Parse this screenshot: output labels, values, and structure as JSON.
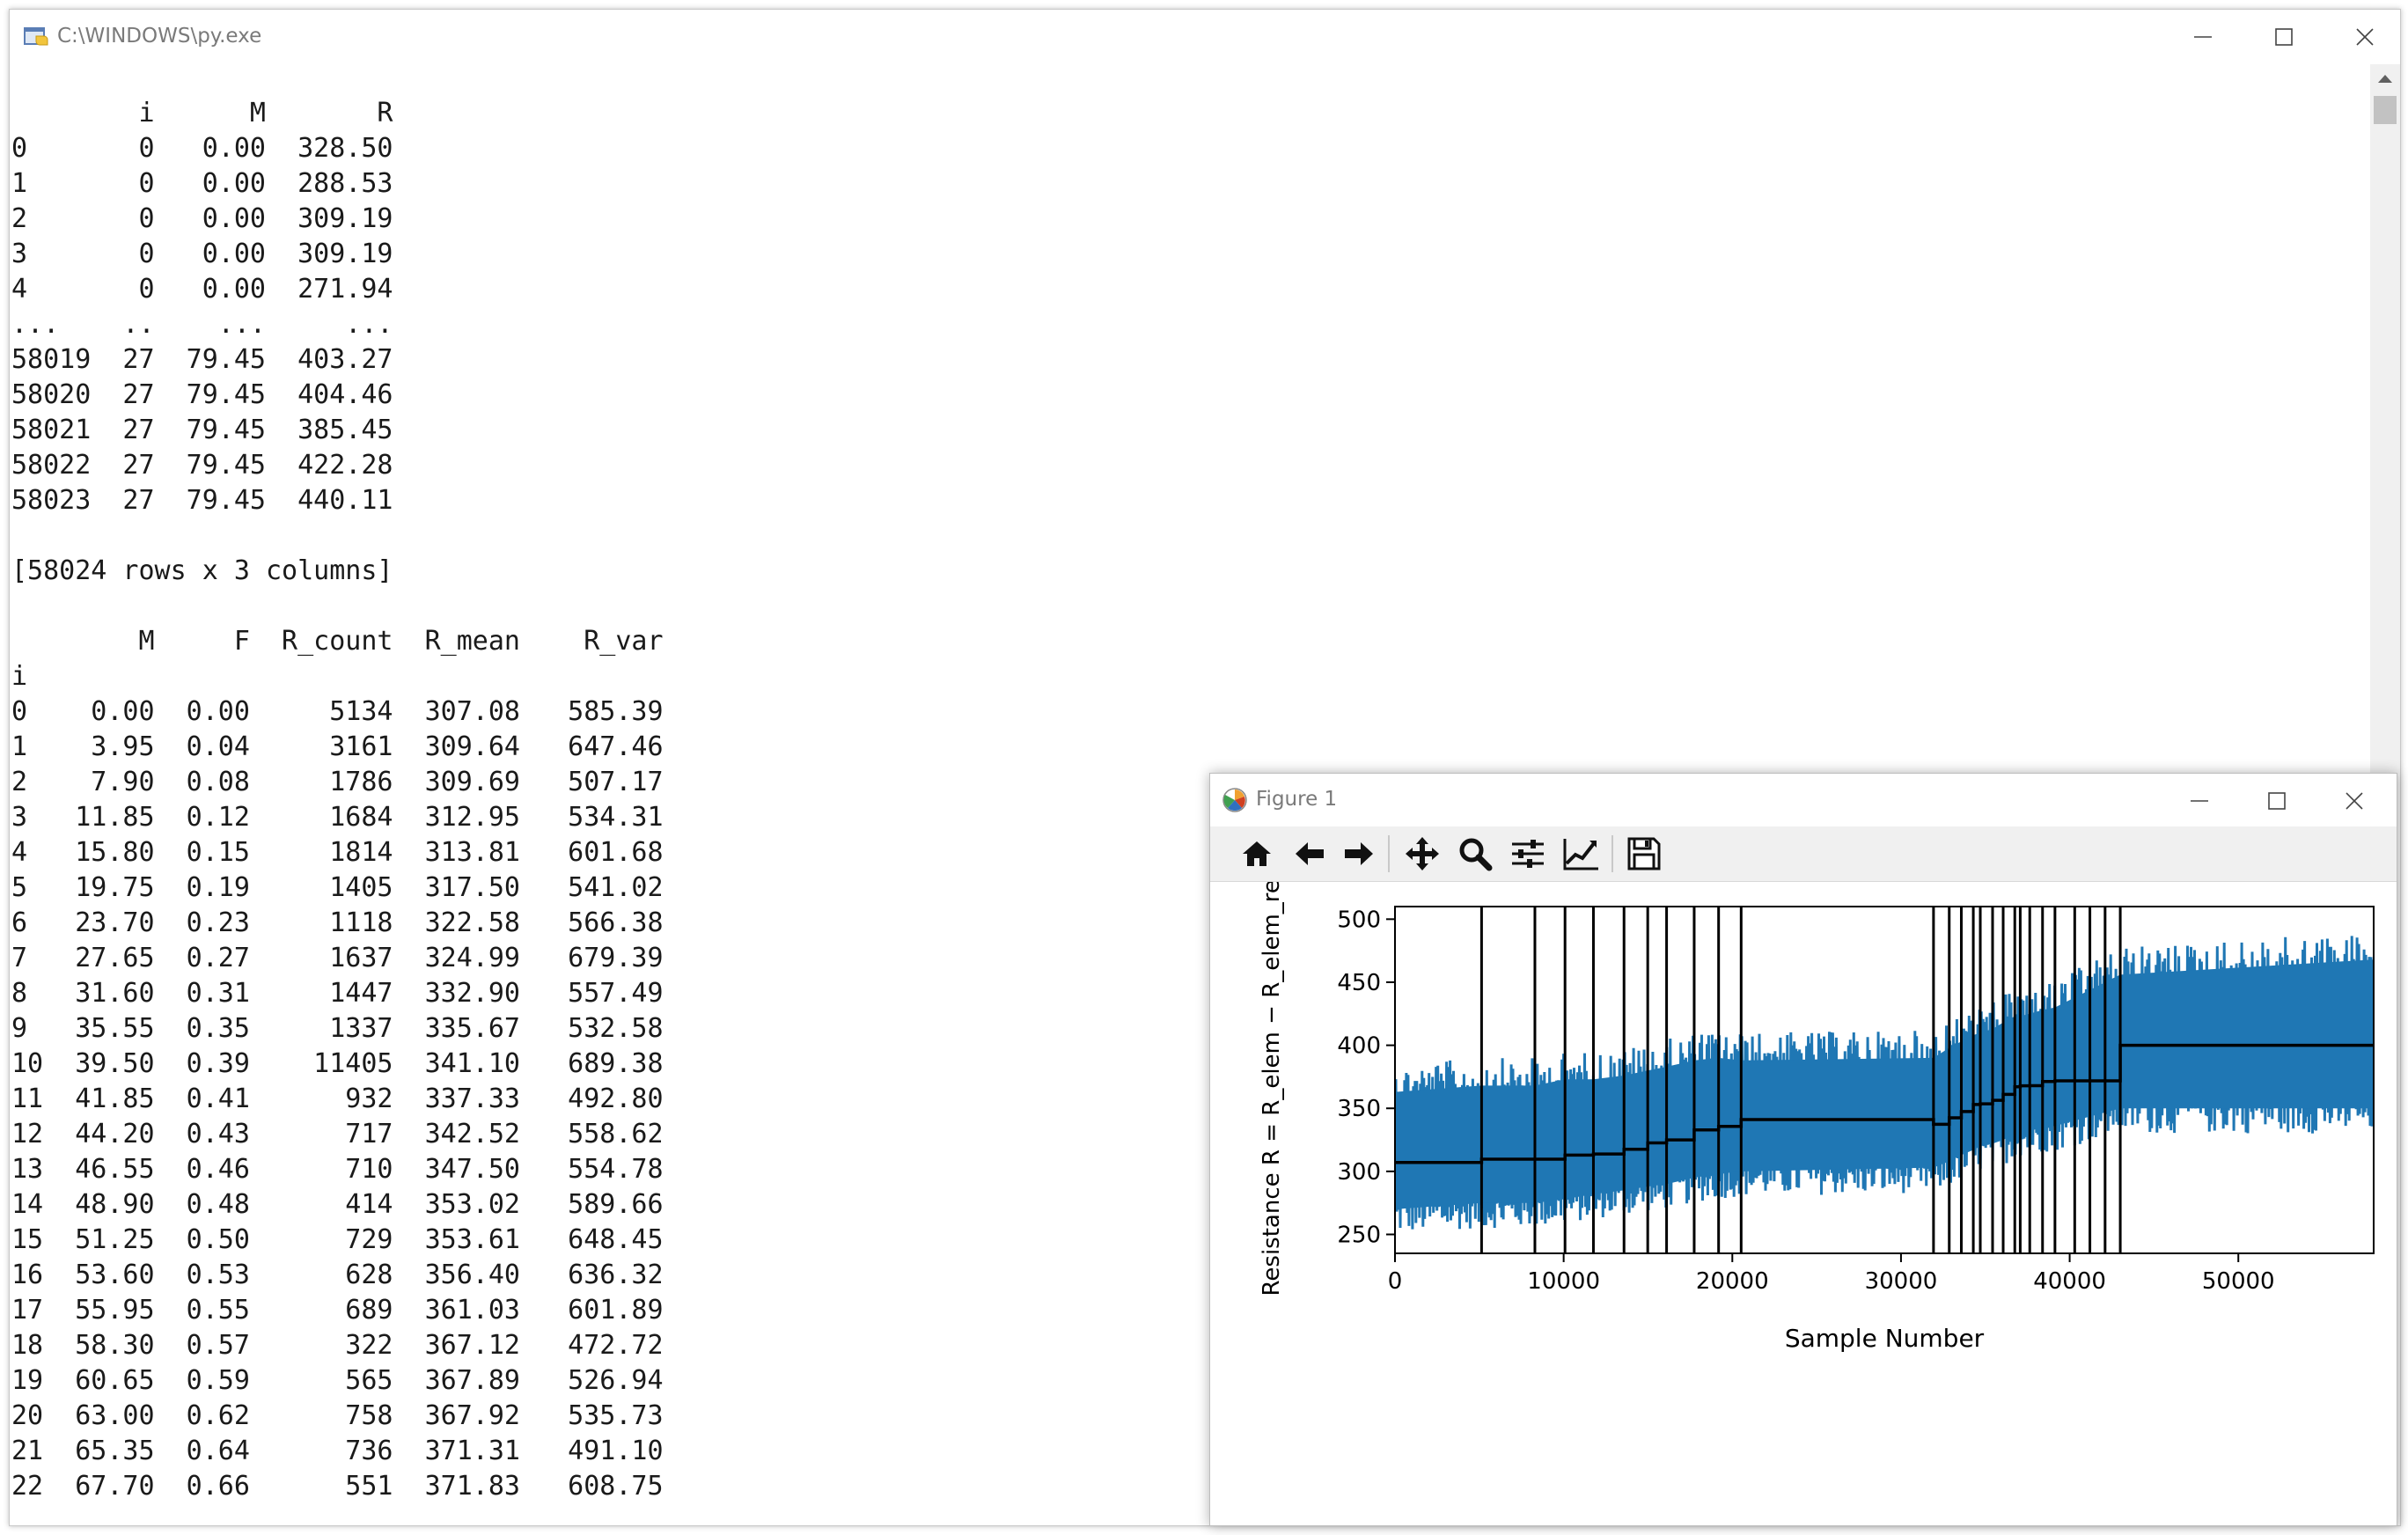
{
  "console": {
    "title": "C:\\WINDOWS\\py.exe",
    "lines": [
      "        i      M       R",
      "0       0   0.00  328.50",
      "1       0   0.00  288.53",
      "2       0   0.00  309.19",
      "3       0   0.00  309.19",
      "4       0   0.00  271.94",
      "...    ..    ...     ...",
      "58019  27  79.45  403.27",
      "58020  27  79.45  404.46",
      "58021  27  79.45  385.45",
      "58022  27  79.45  422.28",
      "58023  27  79.45  440.11",
      "",
      "[58024 rows x 3 columns]",
      "",
      "        M     F  R_count  R_mean    R_var",
      "i",
      "0    0.00  0.00     5134  307.08   585.39",
      "1    3.95  0.04     3161  309.64   647.46",
      "2    7.90  0.08     1786  309.69   507.17",
      "3   11.85  0.12     1684  312.95   534.31",
      "4   15.80  0.15     1814  313.81   601.68",
      "5   19.75  0.19     1405  317.50   541.02",
      "6   23.70  0.23     1118  322.58   566.38",
      "7   27.65  0.27     1637  324.99   679.39",
      "8   31.60  0.31     1447  332.90   557.49",
      "9   35.55  0.35     1337  335.67   532.58",
      "10  39.50  0.39    11405  341.10   689.38",
      "11  41.85  0.41      932  337.33   492.80",
      "12  44.20  0.43      717  342.52   558.62",
      "13  46.55  0.46      710  347.50   554.78",
      "14  48.90  0.48      414  353.02   589.66",
      "15  51.25  0.50      729  353.61   648.45",
      "16  53.60  0.53      628  356.40   636.32",
      "17  55.95  0.55      689  361.03   601.89",
      "18  58.30  0.57      322  367.12   472.72",
      "19  60.65  0.59      565  367.89   526.94",
      "20  63.00  0.62      758  367.92   535.73",
      "21  65.35  0.64      736  371.31   491.10",
      "22  67.70  0.66      551  371.83   608.75"
    ]
  },
  "figure": {
    "title": "Figure 1",
    "toolbar": [
      {
        "name": "home-icon"
      },
      {
        "name": "back-arrow-icon"
      },
      {
        "name": "forward-arrow-icon"
      },
      {
        "name": "pan-icon"
      },
      {
        "name": "zoom-icon"
      },
      {
        "name": "subplots-config-icon"
      },
      {
        "name": "axes-edit-icon"
      },
      {
        "name": "save-icon"
      }
    ]
  },
  "colors": {
    "signal": "#1f77b4",
    "step": "#000000"
  },
  "chart_data": {
    "type": "line",
    "title": "",
    "xlabel": "Sample Number",
    "ylabel": "Resistance R = R_elem − R_elem_ref [Ω]",
    "xlim": [
      0,
      58024
    ],
    "ylim": [
      235,
      510
    ],
    "xticks": [
      0,
      10000,
      20000,
      30000,
      40000,
      50000
    ],
    "yticks": [
      250,
      300,
      350,
      400,
      450,
      500
    ],
    "grid": false,
    "legend": "none",
    "series": [
      {
        "kind": "noisy-band",
        "x": [
          0,
          5134,
          8295,
          10081,
          11765,
          13579,
          14984,
          16102,
          17739,
          19186,
          20523,
          31928,
          32860,
          33577,
          34287,
          34701,
          35430,
          36058,
          36747,
          37069,
          37634,
          38392,
          39128,
          43000,
          58024
        ],
        "y_mean": [
          307,
          309.6,
          309.7,
          313,
          313.8,
          317.5,
          322.6,
          325,
          332.9,
          335.7,
          341.1,
          337.3,
          342.5,
          347.5,
          353,
          353.6,
          356.4,
          361,
          367.1,
          367.9,
          367.9,
          371.3,
          371.8,
          400,
          400
        ],
        "y_low": [
          250,
          255,
          255,
          258,
          262,
          265,
          268,
          270,
          275,
          278,
          280,
          283,
          288,
          293,
          297,
          300,
          302,
          305,
          310,
          312,
          312,
          315,
          316,
          330,
          330
        ],
        "y_high": [
          385,
          390,
          390,
          395,
          395,
          398,
          402,
          405,
          410,
          412,
          410,
          412,
          420,
          425,
          430,
          432,
          435,
          440,
          445,
          445,
          447,
          450,
          452,
          478,
          490
        ]
      },
      {
        "kind": "step",
        "x": [
          0,
          5134,
          8295,
          10081,
          11765,
          13579,
          14984,
          16102,
          17739,
          19186,
          20523,
          31928,
          32860,
          33577,
          34287,
          34701,
          35430,
          36058,
          36747,
          37069,
          37634,
          38392,
          39128,
          43000,
          58024
        ],
        "y": [
          307.08,
          309.64,
          309.69,
          312.95,
          313.81,
          317.5,
          322.58,
          324.99,
          332.9,
          335.67,
          341.1,
          337.33,
          342.52,
          347.5,
          353.02,
          353.61,
          356.4,
          361.03,
          367.12,
          367.89,
          367.92,
          371.31,
          371.83,
          400,
          400
        ]
      }
    ],
    "vlines": [
      5134,
      8295,
      10081,
      11765,
      13579,
      14984,
      16102,
      17739,
      19186,
      20523,
      31928,
      32860,
      33577,
      34287,
      34701,
      35430,
      36058,
      36747,
      37069,
      37634,
      38392,
      39128,
      40300,
      41200,
      42100,
      43000
    ]
  }
}
